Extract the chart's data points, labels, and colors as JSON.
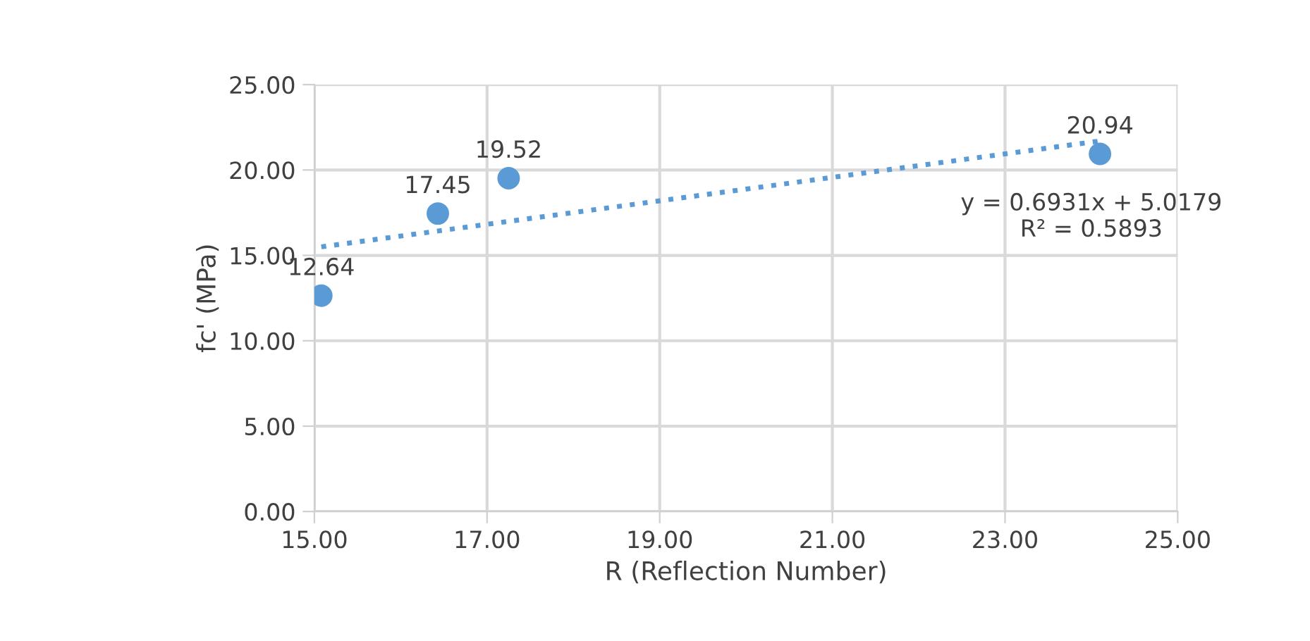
{
  "chart_data": {
    "type": "scatter",
    "xlabel": "R (Reflection Number)",
    "ylabel": "fc' (MPa)",
    "series": [
      {
        "color": "#5b9bd5",
        "x": [
          15.08,
          16.43,
          17.25,
          24.1
        ],
        "values": [
          12.64,
          17.45,
          19.52,
          20.94
        ],
        "value_labels": [
          "12.64",
          "17.45",
          "19.52",
          "20.94"
        ],
        "marker": "circle"
      },
      {
        "type": "line",
        "color": "#5b9bd5",
        "x": [
          15.08,
          24.1
        ],
        "values": [
          15.5,
          21.7
        ],
        "line_style": "dotted",
        "marker": "none"
      }
    ],
    "annotations": [
      "y = 0.6931x + 5.0179\nR² = 0.5893"
    ],
    "xlim": [
      15,
      25
    ],
    "xticks": [
      {
        "value": 15,
        "label": "15.00"
      },
      {
        "value": 17,
        "label": "17.00"
      },
      {
        "value": 19,
        "label": "19.00"
      },
      {
        "value": 21,
        "label": "21.00"
      },
      {
        "value": 23,
        "label": "23.00"
      },
      {
        "value": 25,
        "label": "25.00"
      }
    ],
    "ylim": [
      0,
      25
    ],
    "yticks": [
      {
        "value": 0,
        "label": "0.00"
      },
      {
        "value": 5,
        "label": "5.00"
      },
      {
        "value": 10,
        "label": "10.00"
      },
      {
        "value": 15,
        "label": "15.00"
      },
      {
        "value": 20,
        "label": "20.00"
      },
      {
        "value": 25,
        "label": "25.00"
      }
    ],
    "grid": true
  }
}
